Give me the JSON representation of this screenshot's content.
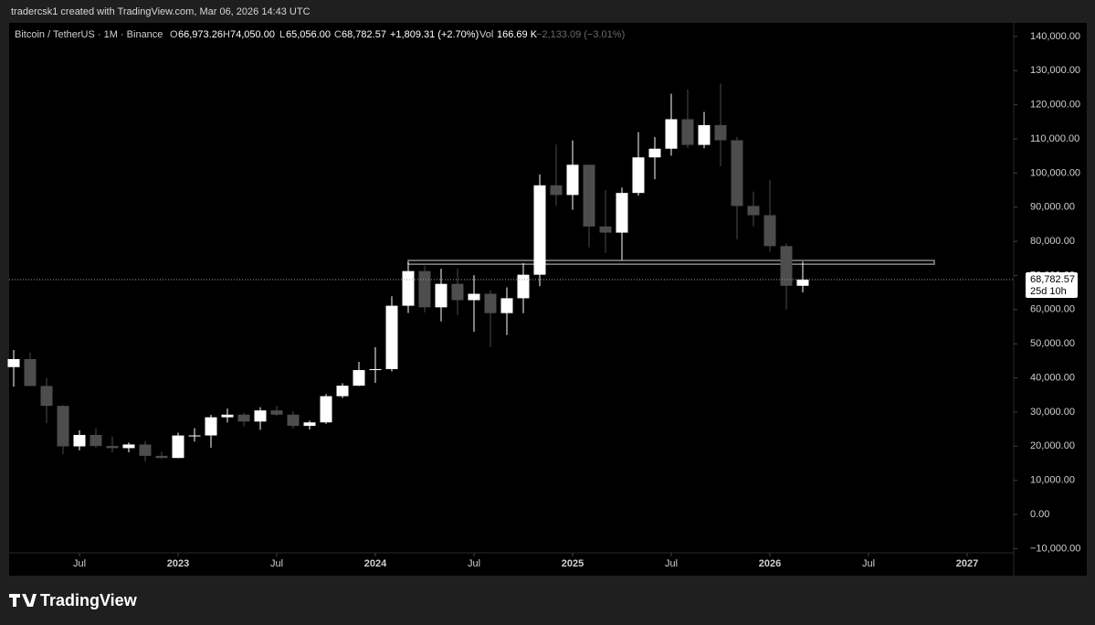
{
  "chart_data": {
    "type": "candlestick",
    "author_line": "tradercsk1 created with TradingView.com, Mar 06, 2026 14:43 UTC",
    "legend": {
      "o": "O",
      "open": "66,973.26",
      "h": "H",
      "high": "74,050.00",
      "l": "L",
      "low": "65,056.00",
      "c": "C",
      "close": "68,782.57",
      "change": "+1,809.31 (+2.70%)",
      "vol_label": "Vol",
      "vol": "166.69 K",
      "vol_change": "−2,133.09 (−3.01%)"
    },
    "price_tag": {
      "value": 68782.57,
      "label": "68,782.57",
      "countdown": "25d 10h"
    },
    "footer": "TradingView",
    "x": [
      "2022-03",
      "2022-04",
      "2022-05",
      "2022-06",
      "2022-07",
      "2022-08",
      "2022-09",
      "2022-10",
      "2022-11",
      "2022-12",
      "2023-01",
      "2023-02",
      "2023-03",
      "2023-04",
      "2023-05",
      "2023-06",
      "2023-07",
      "2023-08",
      "2023-09",
      "2023-10",
      "2023-11",
      "2023-12",
      "2024-01",
      "2024-02",
      "2024-03",
      "2024-04",
      "2024-05",
      "2024-06",
      "2024-07",
      "2024-08",
      "2024-09",
      "2024-10",
      "2024-11",
      "2024-12",
      "2025-01",
      "2025-02",
      "2025-03",
      "2025-04",
      "2025-05",
      "2025-06",
      "2025-07",
      "2025-08",
      "2025-09",
      "2025-10",
      "2025-11",
      "2025-12",
      "2026-01",
      "2026-02",
      "2026-03"
    ],
    "series": [
      {
        "name": "Bitcoin / TetherUS · 1M · Binance",
        "up_color": "#ffffff",
        "down_color": "#4d4d4d",
        "open": [
          43160,
          45510,
          37630,
          31801,
          19942,
          23296,
          20050,
          19423,
          20491,
          17165,
          16541,
          23125,
          23141,
          28465,
          29233,
          27210,
          30472,
          29232,
          25941,
          26962,
          34640,
          37724,
          42284,
          42580,
          61131,
          71280,
          60672,
          67540,
          62772,
          64628,
          58974,
          63327,
          70216,
          96408,
          93576,
          102429,
          84350,
          82550,
          94172,
          104591,
          107135,
          115764,
          108246,
          114048,
          109608,
          90360,
          87650,
          78600,
          66973.26
        ],
        "high": [
          48189,
          47444,
          39977,
          31982,
          24668,
          25211,
          22799,
          21085,
          21480,
          18387,
          23960,
          25250,
          29184,
          31000,
          29820,
          31431,
          31804,
          30244,
          27483,
          35280,
          38450,
          44700,
          48970,
          63913,
          73777,
          72797,
          71979,
          71997,
          70079,
          65660,
          66498,
          73620,
          99588,
          108353,
          109588,
          102500,
          95000,
          95758,
          111980,
          110530,
          123218,
          124474,
          117900,
          126199,
          110600,
          94600,
          97900,
          79400,
          74050
        ],
        "low": [
          37450,
          37578,
          26700,
          17622,
          18781,
          19520,
          18125,
          18190,
          15476,
          16256,
          16499,
          21351,
          19549,
          26942,
          25811,
          24800,
          28861,
          25166,
          24901,
          26538,
          34097,
          37615,
          38555,
          41884,
          59005,
          59191,
          56552,
          58402,
          53485,
          49000,
          52550,
          58946,
          66835,
          90500,
          89256,
          78258,
          76606,
          74508,
          93377,
          98200,
          105100,
          107350,
          107255,
          102000,
          80600,
          84400,
          77000,
          60000,
          65056
        ],
        "close": [
          45510,
          37630,
          31801,
          19942,
          23293,
          20050,
          19423,
          20491,
          17164,
          16542,
          23125,
          23141,
          28465,
          29233,
          27210,
          30472,
          29232,
          25941,
          26962,
          34639,
          37723,
          42284,
          42580,
          61131,
          71280,
          60672,
          67540,
          62772,
          64628,
          58974,
          63327,
          70215,
          96408,
          93576,
          102429,
          84350,
          82550,
          94172,
          104591,
          107135,
          115764,
          108246,
          114048,
          109608,
          90360,
          87650,
          78600,
          66973,
          68782.57
        ]
      }
    ],
    "zone": {
      "start": "2024-03",
      "end": "2026-11",
      "low": 73300,
      "high": 74400
    },
    "ylim": [
      -11240,
      144000
    ],
    "yticks": [
      {
        "value": 140000,
        "label": "140,000.00"
      },
      {
        "value": 130000,
        "label": "130,000.00"
      },
      {
        "value": 120000,
        "label": "120,000.00"
      },
      {
        "value": 110000,
        "label": "110,000.00"
      },
      {
        "value": 100000,
        "label": "100,000.00"
      },
      {
        "value": 90000,
        "label": "90,000.00"
      },
      {
        "value": 80000,
        "label": "80,000.00"
      },
      {
        "value": 70000,
        "label": "70,000.00"
      },
      {
        "value": 60000,
        "label": "60,000.00"
      },
      {
        "value": 50000,
        "label": "50,000.00"
      },
      {
        "value": 40000,
        "label": "40,000.00"
      },
      {
        "value": 30000,
        "label": "30,000.00"
      },
      {
        "value": 20000,
        "label": "20,000.00"
      },
      {
        "value": 10000,
        "label": "10,000.00"
      },
      {
        "value": 0,
        "label": "0.00"
      },
      {
        "value": -10000,
        "label": "−10,000.00"
      }
    ],
    "xticks": [
      {
        "value": "2022-07",
        "label": "Jul"
      },
      {
        "value": "2023-01",
        "label": "2023"
      },
      {
        "value": "2023-07",
        "label": "Jul"
      },
      {
        "value": "2024-01",
        "label": "2024"
      },
      {
        "value": "2024-07",
        "label": "Jul"
      },
      {
        "value": "2025-01",
        "label": "2025"
      },
      {
        "value": "2025-07",
        "label": "Jul"
      },
      {
        "value": "2026-01",
        "label": "2026"
      },
      {
        "value": "2026-07",
        "label": "Jul"
      },
      {
        "value": "2027-01",
        "label": "2027"
      }
    ],
    "grid": false
  }
}
